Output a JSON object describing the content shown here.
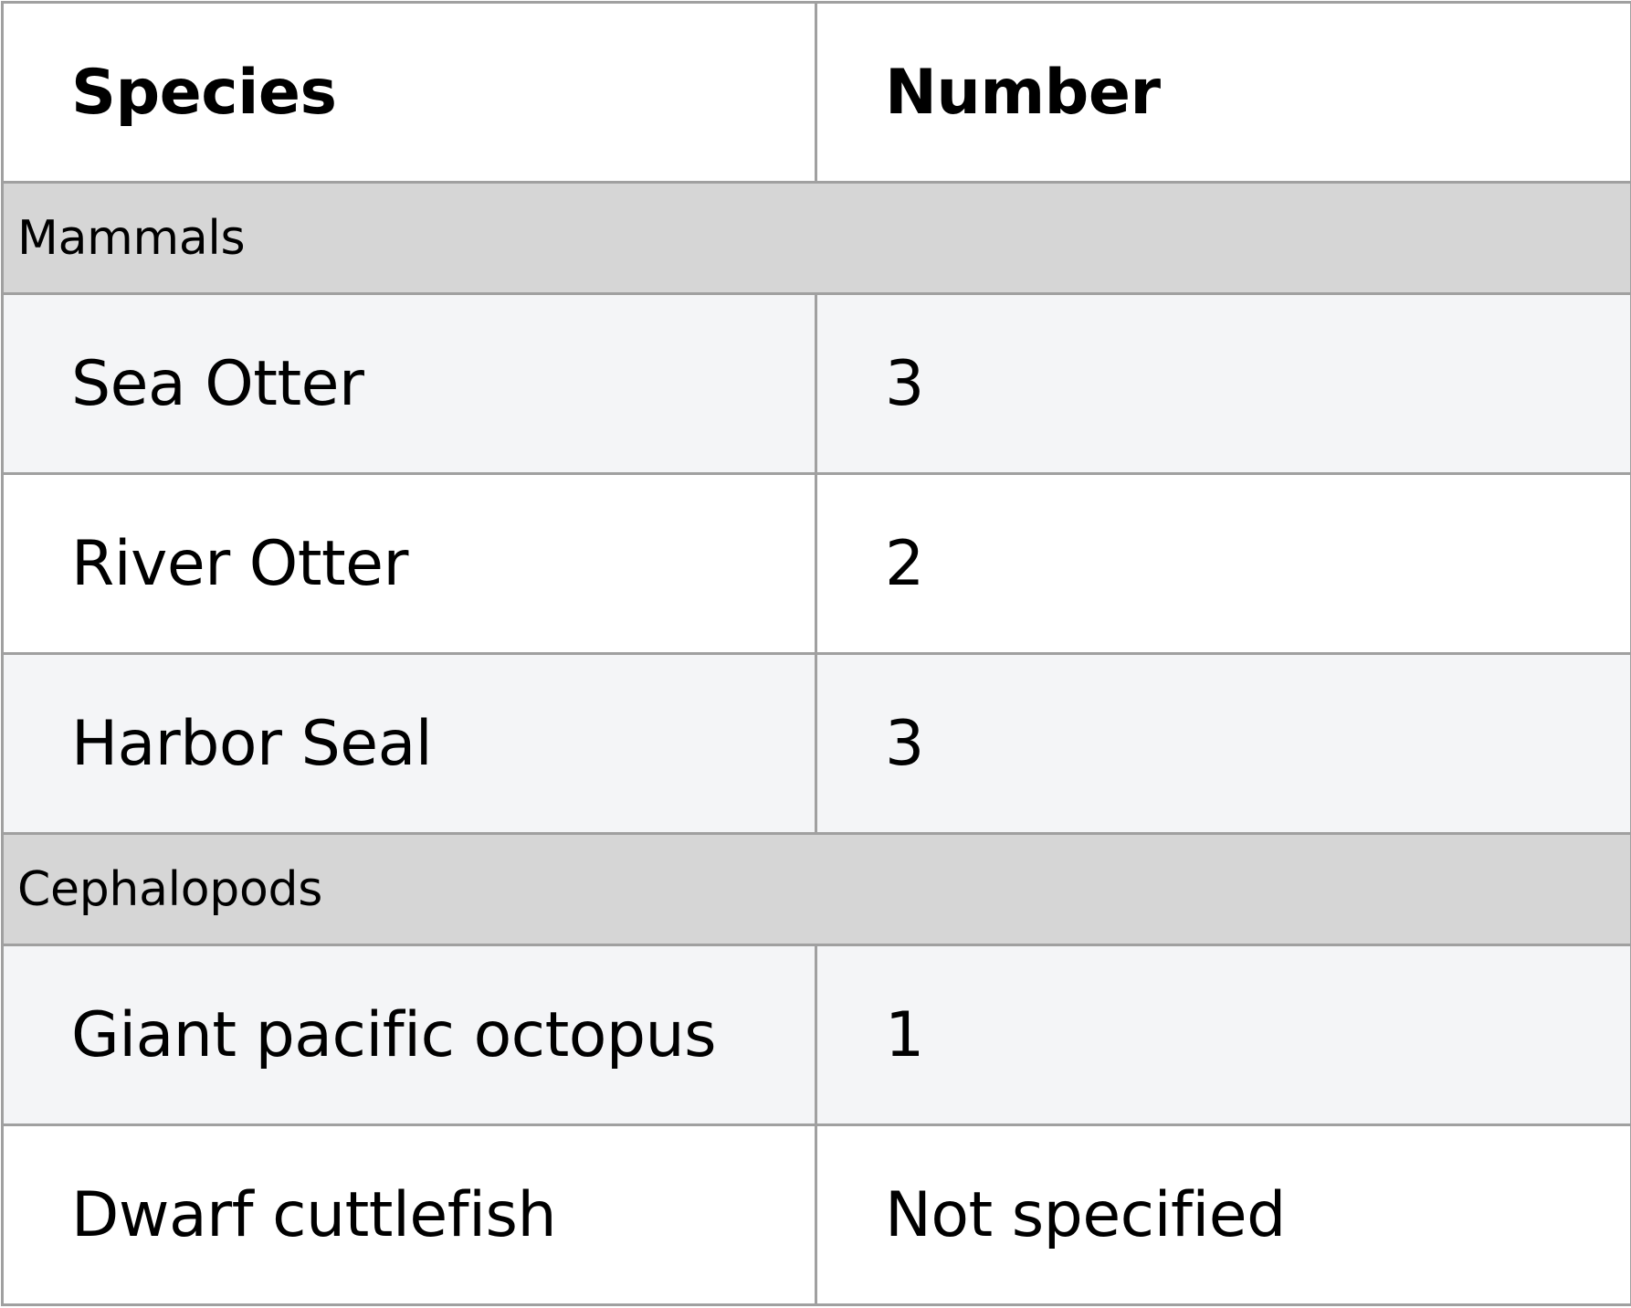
{
  "header": {
    "species": "Species",
    "number": "Number"
  },
  "groups": [
    {
      "label": "Mammals",
      "rows": [
        {
          "species": "Sea Otter",
          "number": "3"
        },
        {
          "species": "River Otter",
          "number": "2"
        },
        {
          "species": "Harbor Seal",
          "number": "3"
        }
      ]
    },
    {
      "label": "Cephalopods",
      "rows": [
        {
          "species": "Giant pacific octopus",
          "number": "1"
        },
        {
          "species": "Dwarf cuttlefish",
          "number": "Not specified"
        }
      ]
    }
  ]
}
